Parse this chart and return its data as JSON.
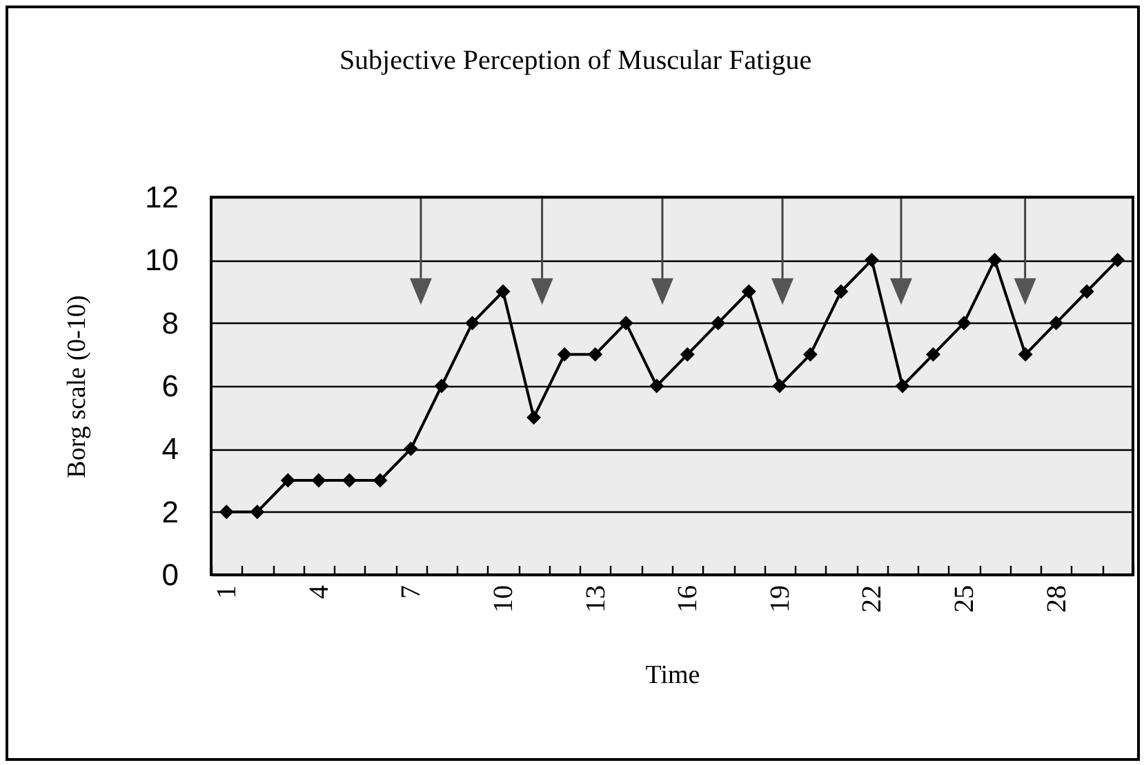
{
  "chart_data": {
    "type": "line",
    "title": "Subjective Perception of Muscular Fatigue",
    "xlabel": "Time",
    "ylabel": "Borg scale (0-10)",
    "categories": [
      "1",
      null,
      null,
      "4",
      null,
      null,
      "7",
      null,
      null,
      "10",
      null,
      null,
      "13",
      null,
      null,
      "16",
      null,
      null,
      "19",
      null,
      null,
      "22",
      null,
      null,
      "25",
      null,
      null,
      "28",
      null,
      null
    ],
    "series": [
      {
        "color": "#000000",
        "values": [
          2,
          2,
          3,
          3,
          3,
          3,
          4,
          6,
          8,
          9,
          5,
          7,
          7,
          8,
          6,
          7,
          8,
          9,
          6,
          7,
          9,
          10,
          6,
          7,
          8,
          10,
          7,
          8,
          9,
          10
        ]
      }
    ],
    "ylim": [
      0,
      12
    ],
    "yticks": [
      0,
      2,
      4,
      6,
      8,
      10,
      12
    ],
    "grid": "y",
    "marker": "diamond",
    "line_style": "solid"
  }
}
